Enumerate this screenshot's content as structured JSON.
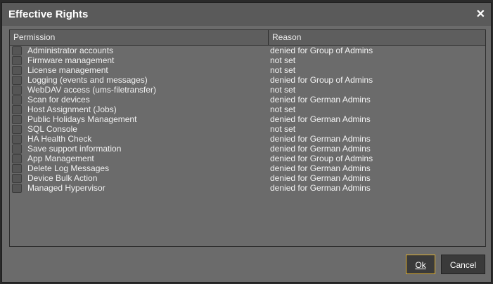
{
  "dialog": {
    "title": "Effective Rights",
    "close_icon": "close-icon"
  },
  "table": {
    "headers": [
      "Permission",
      "Reason"
    ],
    "rows": [
      {
        "permission": "Administrator accounts",
        "reason": "denied for Group of Admins"
      },
      {
        "permission": "Firmware management",
        "reason": "not set"
      },
      {
        "permission": "License management",
        "reason": "not set"
      },
      {
        "permission": "Logging (events and messages)",
        "reason": "denied for Group of Admins"
      },
      {
        "permission": "WebDAV access (ums-filetransfer)",
        "reason": "not set"
      },
      {
        "permission": "Scan for devices",
        "reason": "denied for German Admins"
      },
      {
        "permission": "Host Assignment (Jobs)",
        "reason": "not set"
      },
      {
        "permission": "Public Holidays Management",
        "reason": "denied for German Admins"
      },
      {
        "permission": "SQL Console",
        "reason": "not set"
      },
      {
        "permission": "HA Health Check",
        "reason": "denied for German Admins"
      },
      {
        "permission": "Save support information",
        "reason": "denied for German Admins"
      },
      {
        "permission": "App Management",
        "reason": "denied for Group of Admins"
      },
      {
        "permission": "Delete Log Messages",
        "reason": "denied for German Admins"
      },
      {
        "permission": "Device Bulk Action",
        "reason": "denied for German Admins"
      },
      {
        "permission": "Managed Hypervisor",
        "reason": "denied for German Admins"
      }
    ]
  },
  "buttons": {
    "ok": "Ok",
    "cancel": "Cancel"
  },
  "colors": {
    "focus": "#e0b030"
  }
}
